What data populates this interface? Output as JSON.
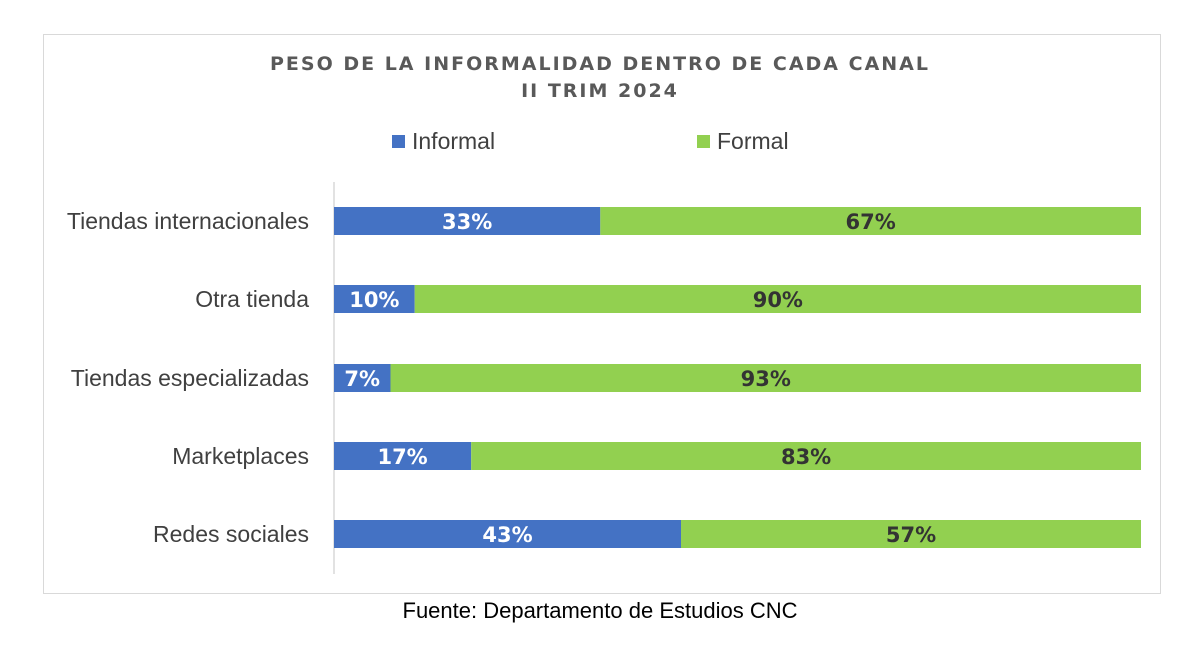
{
  "chart_data": {
    "type": "bar",
    "orientation": "horizontal",
    "stacked": true,
    "title": "PESO DE LA INFORMALIDAD DENTRO DE CADA CANAL",
    "subtitle": "II TRIM 2024",
    "categories": [
      "Tiendas internacionales",
      "Otra tienda",
      "Tiendas especializadas",
      "Marketplaces",
      "Redes sociales"
    ],
    "series": [
      {
        "name": "Informal",
        "color": "#4472c4",
        "values": [
          33,
          10,
          7,
          17,
          43
        ],
        "labels": [
          "33%",
          "10%",
          "7%",
          "17%",
          "43%"
        ]
      },
      {
        "name": "Formal",
        "color": "#92d050",
        "values": [
          67,
          90,
          93,
          83,
          57
        ],
        "labels": [
          "67%",
          "90%",
          "93%",
          "83%",
          "57%"
        ]
      }
    ],
    "xlim": [
      0,
      100
    ],
    "grid": false,
    "legend": "top"
  },
  "source": "Fuente: Departamento de Estudios CNC"
}
